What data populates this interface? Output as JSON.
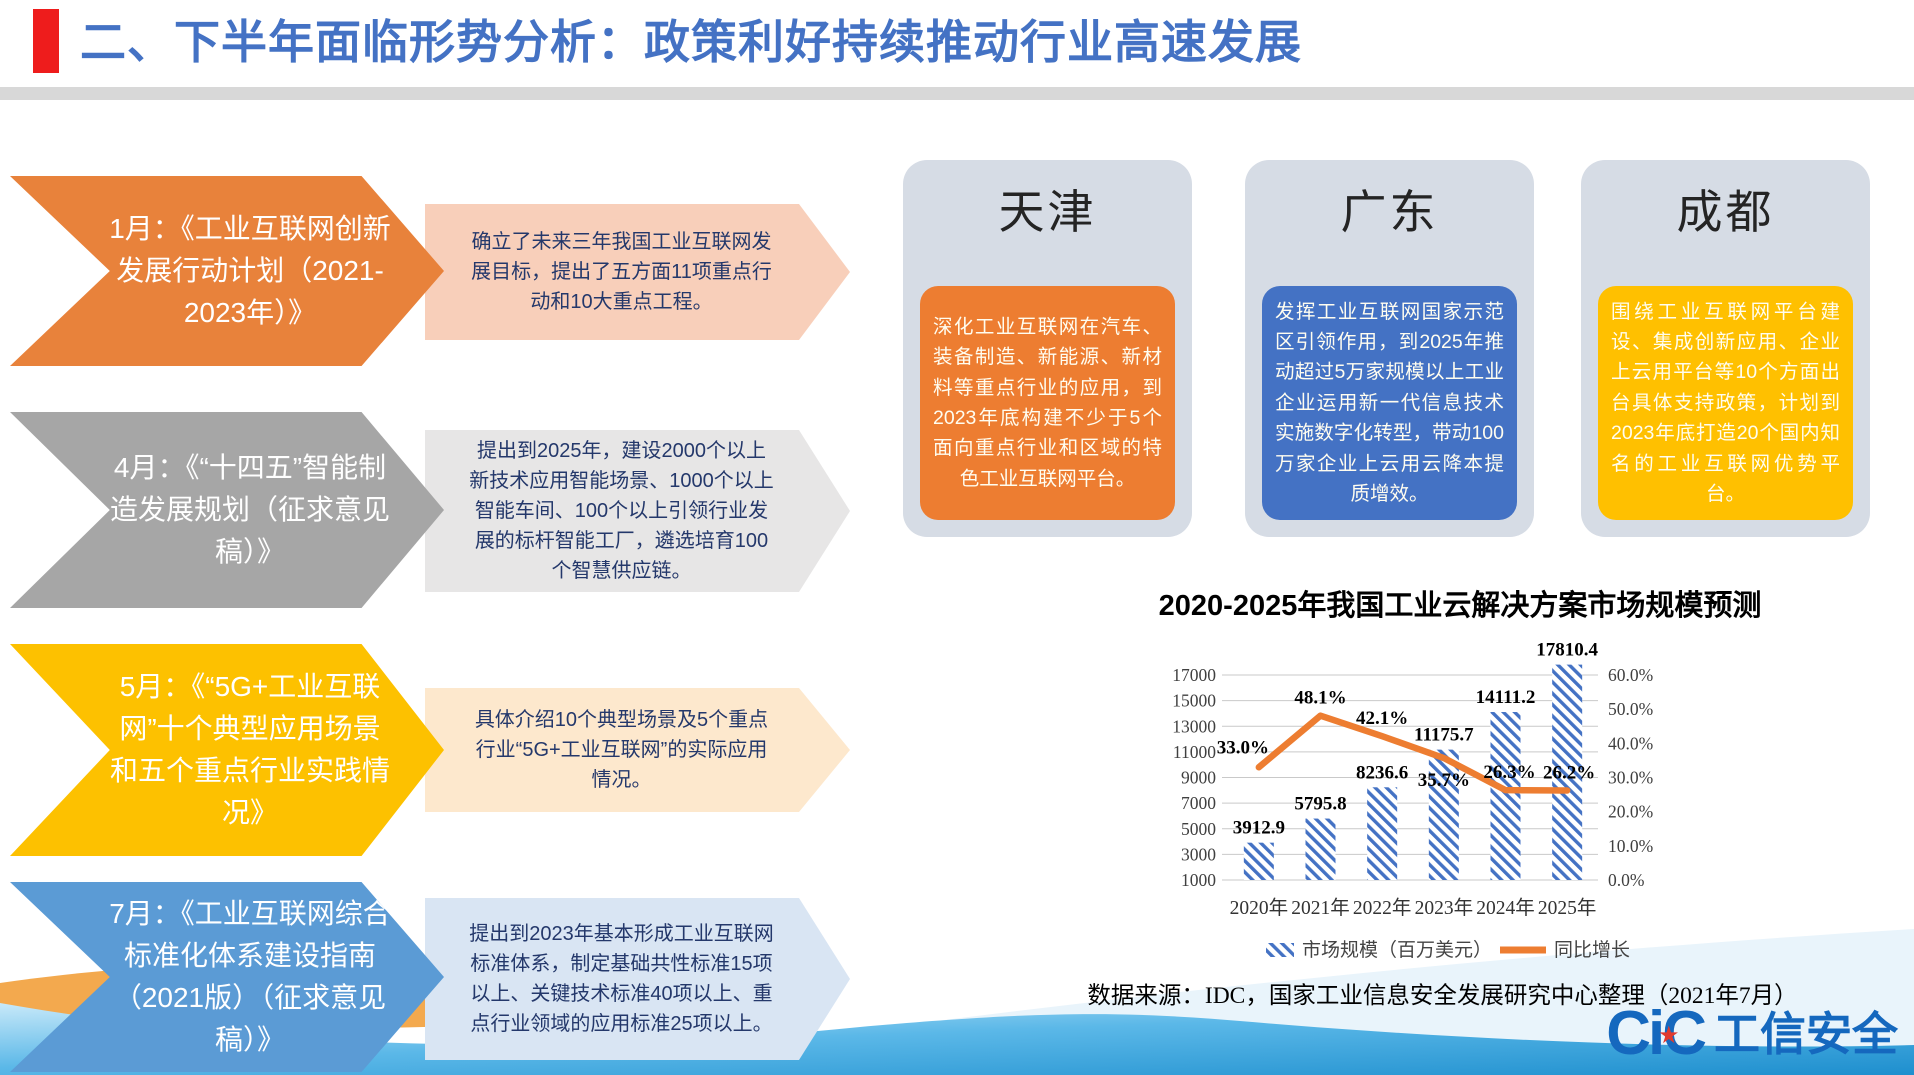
{
  "header": {
    "title": "二、下半年面临形势分析：政策利好持续推动行业高速发展",
    "accent_color": "#ee1c1c",
    "title_color": "#4472c4"
  },
  "policies": [
    {
      "label": "1月：《工业互联网创新发展行动计划（2021-2023年）》",
      "desc": "确立了未来三年我国工业互联网发展目标，提出了五方面11项重点行动和10大重点工程。",
      "arrow_color": "#e8823b",
      "banner_color": "#f8cfba"
    },
    {
      "label": "4月：《“十四五”智能制造发展规划（征求意见稿）》",
      "desc": "提出到2025年，建设2000个以上新技术应用智能场景、1000个以上智能车间、100个以上引领行业发展的标杆智能工厂，遴选培育100个智慧供应链。",
      "arrow_color": "#a6a6a6",
      "banner_color": "#e7e6e6"
    },
    {
      "label": "5月：《“5G+工业互联网”十个典型应用场景和五个重点行业实践情况》",
      "desc": "具体介绍10个典型场景及5个重点行业“5G+工业互联网”的实际应用情况。",
      "arrow_color": "#fdc100",
      "banner_color": "#fde8cd"
    },
    {
      "label": "7月：《工业互联网综合标准化体系建设指南（2021版）（征求意见稿）》",
      "desc": "提出到2023年基本形成工业互联网标准体系，制定基础共性标准15项以上、关键技术标准40项以上、重点行业领域的应用标准25项以上。",
      "arrow_color": "#5b9bd5",
      "banner_color": "#d9e5f3"
    }
  ],
  "regions": [
    {
      "name": "天津",
      "desc": "深化工业互联网在汽车、装备制造、新能源、新材料等重点行业的应用，到2023年底构建不少于5个面向重点行业和区域的特色工业互联网平台。",
      "card_color": "#d6dce5",
      "box_color": "#ed7d31"
    },
    {
      "name": "广东",
      "desc": "发挥工业互联网国家示范区引领作用，到2025年推动超过5万家规模以上工业企业运用新一代信息技术实施数字化转型，带动100万家企业上云用云降本提质增效。",
      "card_color": "#d6dce5",
      "box_color": "#4472c4"
    },
    {
      "name": "成都",
      "desc": "围绕工业互联网平台建设、集成创新应用、企业上云用平台等10个方面出台具体支持政策，计划到2023年底打造20个国内知名的工业互联网优势平台。",
      "card_color": "#d6dce5",
      "box_color": "#ffc000"
    }
  ],
  "chart_data": {
    "type": "bar",
    "combo": "bar+line",
    "title": "2020-2025年我国工业云解决方案市场规模预测",
    "categories": [
      "2020年",
      "2021年",
      "2022年",
      "2023年",
      "2024年",
      "2025年"
    ],
    "series": [
      {
        "name": "市场规模（百万美元）",
        "type": "bar",
        "axis": "left",
        "style": "diagonal-hatch",
        "color": "#4472c4",
        "values": [
          3912.9,
          5795.8,
          8236.6,
          11175.7,
          14111.2,
          17810.4
        ]
      },
      {
        "name": "同比增长",
        "type": "line",
        "axis": "right",
        "color": "#ed7d31",
        "unit": "%",
        "values": [
          33.0,
          48.1,
          42.1,
          35.7,
          26.3,
          26.2
        ]
      }
    ],
    "left_axis": {
      "min": 1000,
      "max": 17000,
      "step": 2000
    },
    "right_axis": {
      "min": 0,
      "max": 60,
      "step": 10,
      "format": "percent"
    },
    "grid": true,
    "legend_position": "bottom"
  },
  "source_note": "数据来源：IDC，国家工业信息安全发展研究中心整理（2021年7月）",
  "logo": {
    "brand": "CiC",
    "star": "★",
    "name": "工信安全",
    "color": "#1568be"
  }
}
